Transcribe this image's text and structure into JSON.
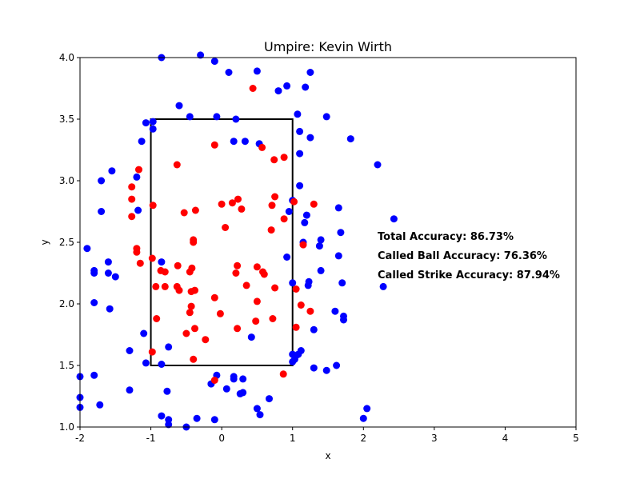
{
  "chart_data": {
    "type": "scatter",
    "title": "Umpire: Kevin Wirth",
    "xlabel": "x",
    "ylabel": "y",
    "xlim": [
      -2,
      5
    ],
    "ylim": [
      1.0,
      4.0
    ],
    "x_ticks": [
      "-2",
      "-1",
      "0",
      "1",
      "2",
      "3",
      "4",
      "5"
    ],
    "y_ticks": [
      "1.0",
      "1.5",
      "2.0",
      "2.5",
      "3.0",
      "3.5",
      "4.0"
    ],
    "grid": false,
    "legend": "none",
    "strike_zone": {
      "x": [
        -1,
        1
      ],
      "y": [
        1.5,
        3.5
      ]
    },
    "annotations": [
      "Total Accuracy: 86.73%",
      "Called Ball Accuracy: 76.36%",
      "Called Strike Accuracy: 87.94%"
    ],
    "series": [
      {
        "color": "#0000ff",
        "points": [
          [
            -0.85,
            4.0
          ],
          [
            -0.3,
            4.02
          ],
          [
            -0.1,
            3.97
          ],
          [
            0.1,
            3.88
          ],
          [
            0.5,
            3.89
          ],
          [
            0.8,
            3.73
          ],
          [
            0.92,
            3.77
          ],
          [
            1.18,
            3.76
          ],
          [
            1.25,
            3.88
          ],
          [
            -0.6,
            3.61
          ],
          [
            -0.45,
            3.52
          ],
          [
            -1.07,
            3.47
          ],
          [
            -0.97,
            3.48
          ],
          [
            -0.97,
            3.42
          ],
          [
            -0.07,
            3.52
          ],
          [
            0.2,
            3.5
          ],
          [
            1.07,
            3.54
          ],
          [
            1.48,
            3.52
          ],
          [
            -1.13,
            3.32
          ],
          [
            0.17,
            3.32
          ],
          [
            0.33,
            3.32
          ],
          [
            0.53,
            3.3
          ],
          [
            1.1,
            3.4
          ],
          [
            1.25,
            3.35
          ],
          [
            1.82,
            3.34
          ],
          [
            1.1,
            3.22
          ],
          [
            2.2,
            3.13
          ],
          [
            -1.55,
            3.08
          ],
          [
            -1.2,
            3.03
          ],
          [
            -1.7,
            3.0
          ],
          [
            1.1,
            2.96
          ],
          [
            1.0,
            2.84
          ],
          [
            0.95,
            2.75
          ],
          [
            -1.7,
            2.75
          ],
          [
            -1.18,
            2.76
          ],
          [
            1.65,
            2.78
          ],
          [
            2.43,
            2.69
          ],
          [
            1.2,
            2.72
          ],
          [
            1.17,
            2.66
          ],
          [
            1.68,
            2.58
          ],
          [
            1.15,
            2.5
          ],
          [
            1.4,
            2.52
          ],
          [
            1.38,
            2.47
          ],
          [
            -1.9,
            2.45
          ],
          [
            1.65,
            2.39
          ],
          [
            0.92,
            2.38
          ],
          [
            -1.6,
            2.34
          ],
          [
            -0.85,
            2.34
          ],
          [
            -1.8,
            2.27
          ],
          [
            -1.8,
            2.25
          ],
          [
            -1.6,
            2.25
          ],
          [
            -1.5,
            2.22
          ],
          [
            1.4,
            2.27
          ],
          [
            1.0,
            2.17
          ],
          [
            1.22,
            2.15
          ],
          [
            1.23,
            2.18
          ],
          [
            1.7,
            2.17
          ],
          [
            2.28,
            2.14
          ],
          [
            -1.8,
            2.01
          ],
          [
            -1.58,
            1.96
          ],
          [
            1.6,
            1.94
          ],
          [
            1.72,
            1.9
          ],
          [
            1.72,
            1.87
          ],
          [
            1.3,
            1.79
          ],
          [
            -1.1,
            1.76
          ],
          [
            0.42,
            1.73
          ],
          [
            -1.3,
            1.62
          ],
          [
            1.12,
            1.62
          ],
          [
            1.0,
            1.59
          ],
          [
            1.05,
            1.58
          ],
          [
            1.08,
            1.59
          ],
          [
            1.03,
            1.55
          ],
          [
            1.0,
            1.53
          ],
          [
            -0.75,
            1.65
          ],
          [
            -1.07,
            1.52
          ],
          [
            -0.85,
            1.51
          ],
          [
            1.62,
            1.5
          ],
          [
            1.3,
            1.48
          ],
          [
            1.48,
            1.46
          ],
          [
            -2.0,
            1.41
          ],
          [
            -1.8,
            1.42
          ],
          [
            -0.07,
            1.42
          ],
          [
            0.17,
            1.41
          ],
          [
            0.17,
            1.39
          ],
          [
            0.3,
            1.39
          ],
          [
            -0.15,
            1.35
          ],
          [
            -0.77,
            1.29
          ],
          [
            -1.3,
            1.3
          ],
          [
            0.07,
            1.31
          ],
          [
            0.3,
            1.28
          ],
          [
            0.26,
            1.27
          ],
          [
            0.67,
            1.23
          ],
          [
            -2.0,
            1.24
          ],
          [
            -2.0,
            1.16
          ],
          [
            -1.72,
            1.18
          ],
          [
            0.5,
            1.15
          ],
          [
            0.54,
            1.1
          ],
          [
            -0.85,
            1.09
          ],
          [
            -0.75,
            1.06
          ],
          [
            -0.35,
            1.07
          ],
          [
            -0.1,
            1.06
          ],
          [
            2.05,
            1.15
          ],
          [
            2.0,
            1.07
          ],
          [
            -0.75,
            1.02
          ],
          [
            -0.5,
            1.0
          ]
        ]
      },
      {
        "color": "#ff0000",
        "points": [
          [
            0.44,
            3.75
          ],
          [
            -0.1,
            3.29
          ],
          [
            0.57,
            3.27
          ],
          [
            0.88,
            3.19
          ],
          [
            0.74,
            3.17
          ],
          [
            -0.63,
            3.13
          ],
          [
            -1.17,
            3.09
          ],
          [
            -1.27,
            2.95
          ],
          [
            -1.27,
            2.85
          ],
          [
            -0.97,
            2.8
          ],
          [
            0.0,
            2.81
          ],
          [
            0.15,
            2.82
          ],
          [
            0.23,
            2.85
          ],
          [
            0.28,
            2.77
          ],
          [
            0.71,
            2.8
          ],
          [
            0.75,
            2.87
          ],
          [
            1.02,
            2.83
          ],
          [
            1.3,
            2.81
          ],
          [
            -0.53,
            2.74
          ],
          [
            -0.37,
            2.76
          ],
          [
            -1.27,
            2.71
          ],
          [
            0.88,
            2.69
          ],
          [
            0.05,
            2.62
          ],
          [
            0.7,
            2.6
          ],
          [
            -0.4,
            2.5
          ],
          [
            -0.4,
            2.52
          ],
          [
            1.15,
            2.48
          ],
          [
            -1.2,
            2.45
          ],
          [
            -1.2,
            2.42
          ],
          [
            -0.98,
            2.37
          ],
          [
            -1.15,
            2.33
          ],
          [
            -0.62,
            2.31
          ],
          [
            -0.42,
            2.29
          ],
          [
            -0.45,
            2.26
          ],
          [
            0.22,
            2.31
          ],
          [
            0.5,
            2.3
          ],
          [
            0.58,
            2.26
          ],
          [
            0.6,
            2.24
          ],
          [
            -0.86,
            2.27
          ],
          [
            -0.8,
            2.26
          ],
          [
            0.2,
            2.25
          ],
          [
            -0.93,
            2.14
          ],
          [
            -0.8,
            2.14
          ],
          [
            -0.63,
            2.14
          ],
          [
            -0.6,
            2.11
          ],
          [
            -0.43,
            2.1
          ],
          [
            -0.38,
            2.11
          ],
          [
            0.35,
            2.15
          ],
          [
            0.75,
            2.13
          ],
          [
            1.05,
            2.12
          ],
          [
            -0.1,
            2.05
          ],
          [
            0.5,
            2.02
          ],
          [
            1.12,
            1.99
          ],
          [
            -0.43,
            1.98
          ],
          [
            -0.45,
            1.93
          ],
          [
            -0.02,
            1.92
          ],
          [
            1.25,
            1.94
          ],
          [
            -0.92,
            1.88
          ],
          [
            0.72,
            1.88
          ],
          [
            0.48,
            1.86
          ],
          [
            -0.38,
            1.8
          ],
          [
            0.22,
            1.8
          ],
          [
            1.05,
            1.81
          ],
          [
            -0.5,
            1.76
          ],
          [
            -0.23,
            1.71
          ],
          [
            -0.98,
            1.61
          ],
          [
            -0.4,
            1.55
          ],
          [
            0.87,
            1.43
          ],
          [
            -0.1,
            1.38
          ]
        ]
      }
    ]
  }
}
